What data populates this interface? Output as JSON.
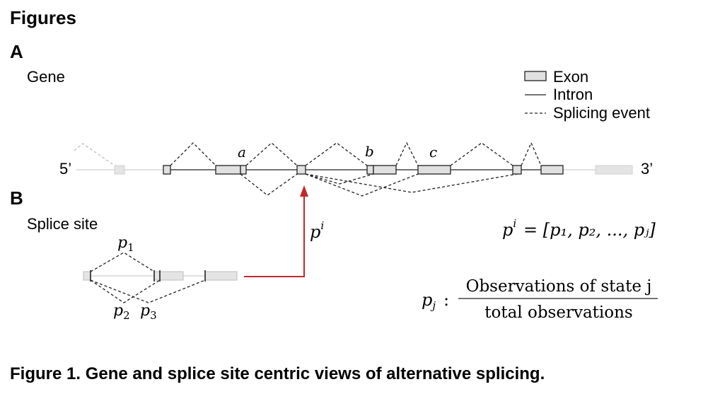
{
  "heading": "Figures",
  "panel_a": {
    "label": "A",
    "title": "Gene",
    "five_prime": "5’",
    "three_prime": "3’",
    "event_labels": [
      "a",
      "b",
      "c"
    ],
    "legend": {
      "exon": "Exon",
      "intron": "Intron",
      "splicing_event": "Splicing event"
    },
    "pointer_label_base": "p",
    "pointer_label_sup": "i"
  },
  "panel_b": {
    "label": "B",
    "title": "Splice site",
    "p1": "p",
    "p1_sub": "1",
    "p2": "p",
    "p2_sub": "2",
    "p3": "p",
    "p3_sub": "3",
    "formula_vector": {
      "lhs_base": "p",
      "lhs_sup": "i",
      "rhs": "= [p₁, p₂, ..., pⱼ]"
    },
    "formula_fraction": {
      "lhs_base": "p",
      "lhs_sub": "j",
      "colon": ":",
      "numerator": "Observations of state j",
      "denominator": "total observations"
    }
  },
  "caption": "Figure 1. Gene and splice site centric views of alternative splicing.",
  "colors": {
    "exon_fill": "#e0e0e0",
    "faded_exon_fill": "#e4e4e4",
    "arrow": "#c0272d"
  }
}
